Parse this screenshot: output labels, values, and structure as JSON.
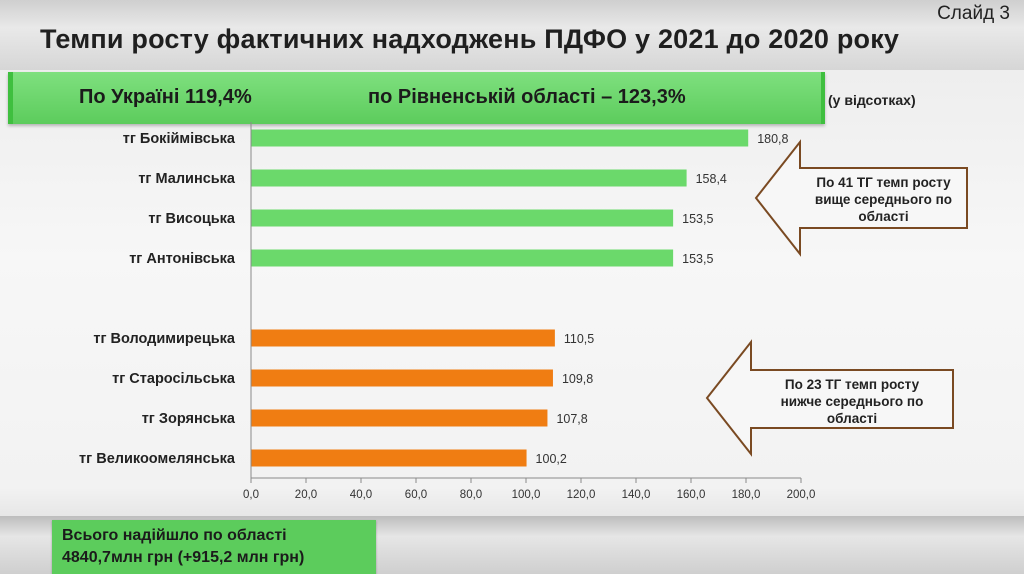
{
  "header": {
    "slide_label": "Слайд 3",
    "title": "Темпи росту фактичних надходжень ПДФО у 2021 до 2020 року"
  },
  "banner": {
    "ukraine": "По Україні 119,4%",
    "region": "по Рівненській області – 123,3%"
  },
  "units_note": "(у відсотках)",
  "callouts": {
    "above": [
      "По 41 ТГ темп росту",
      "вище середнього по",
      "області"
    ],
    "below": [
      "По 23 ТГ темп росту",
      "нижче  середнього по",
      "області"
    ]
  },
  "footer": {
    "line1": "Всього надійшло по області",
    "line2": "4840,7млн грн (+915,2 млн грн)"
  },
  "colors": {
    "above_average": "#6bd96b",
    "below_average": "#f07d12"
  },
  "chart_data": {
    "type": "bar",
    "orientation": "horizontal",
    "categories": [
      "тг Бокіймівська",
      "тг Малинська",
      "тг Висоцька",
      "тг Антонівська",
      "тг Володимирецька",
      "тг Старосільська",
      "тг Зорянська",
      "тг Великоомелянська"
    ],
    "values": [
      180.8,
      158.4,
      153.5,
      153.5,
      110.5,
      109.8,
      107.8,
      100.2
    ],
    "value_labels": [
      "180,8",
      "158,4",
      "153,5",
      "153,5",
      "110,5",
      "109,8",
      "107,8",
      "100,2"
    ],
    "groups": [
      "above",
      "above",
      "above",
      "above",
      "below",
      "below",
      "below",
      "below"
    ],
    "xlim": [
      0,
      200
    ],
    "x_ticks": [
      "0,0",
      "20,0",
      "40,0",
      "60,0",
      "80,0",
      "100,0",
      "120,0",
      "140,0",
      "160,0",
      "180,0",
      "200,0"
    ],
    "grid": false
  }
}
